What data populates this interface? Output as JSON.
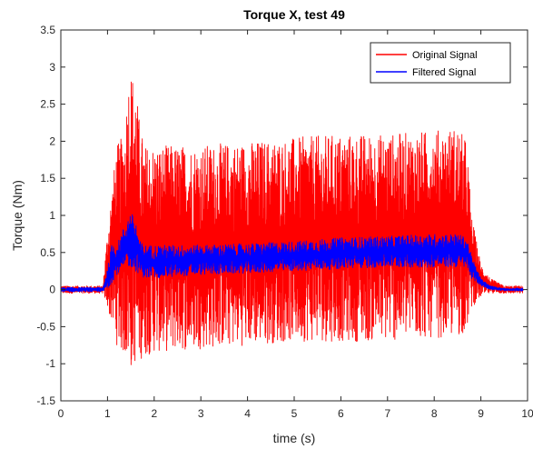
{
  "chart_data": {
    "type": "line",
    "title": "Torque X, test 49",
    "xlabel": "time (s)",
    "ylabel": "Torque (Nm)",
    "xlim": [
      0,
      10
    ],
    "ylim": [
      -1.5,
      3.5
    ],
    "xticks": [
      "0",
      "1",
      "2",
      "3",
      "4",
      "5",
      "6",
      "7",
      "8",
      "9",
      "10"
    ],
    "yticks": [
      "-1.5",
      "-1",
      "-0.5",
      "0",
      "0.5",
      "1",
      "1.5",
      "2",
      "2.5",
      "3",
      "3.5"
    ],
    "grid": false,
    "legend_position": "top-right",
    "series": [
      {
        "name": "Original Signal",
        "color": "#ff0000",
        "envelope": {
          "x": [
            0,
            0.9,
            1.0,
            1.1,
            1.2,
            1.35,
            1.45,
            1.5,
            1.6,
            1.7,
            1.8,
            2.0,
            3.0,
            4.0,
            5.0,
            6.0,
            7.0,
            8.0,
            8.5,
            8.7,
            8.8,
            9.0,
            9.2,
            9.5,
            9.9
          ],
          "upper": [
            0.05,
            0.05,
            0.8,
            1.4,
            1.95,
            2.1,
            2.9,
            3.0,
            2.8,
            2.2,
            1.95,
            1.95,
            1.95,
            2.0,
            2.05,
            2.1,
            2.1,
            2.15,
            2.2,
            2.0,
            1.0,
            0.35,
            0.15,
            0.05,
            0.05
          ],
          "lower": [
            -0.05,
            -0.05,
            -0.25,
            -0.5,
            -0.75,
            -0.9,
            -1.0,
            -1.1,
            -1.0,
            -0.95,
            -0.9,
            -0.85,
            -0.8,
            -0.75,
            -0.7,
            -0.7,
            -0.7,
            -0.65,
            -0.65,
            -0.55,
            -0.25,
            -0.1,
            -0.05,
            -0.05,
            -0.05
          ]
        }
      },
      {
        "name": "Filtered Signal",
        "color": "#0000ff",
        "envelope": {
          "x": [
            0,
            0.9,
            1.0,
            1.1,
            1.2,
            1.35,
            1.45,
            1.5,
            1.6,
            1.7,
            1.8,
            2.0,
            3.0,
            4.0,
            5.0,
            6.0,
            7.0,
            8.0,
            8.5,
            8.7,
            8.8,
            9.0,
            9.2,
            9.5,
            9.9
          ],
          "upper": [
            0.03,
            0.03,
            0.3,
            0.65,
            0.6,
            0.85,
            1.0,
            1.05,
            0.95,
            0.65,
            0.6,
            0.6,
            0.6,
            0.62,
            0.65,
            0.7,
            0.72,
            0.75,
            0.75,
            0.7,
            0.45,
            0.15,
            0.05,
            0.02,
            0.02
          ],
          "lower": [
            -0.03,
            -0.03,
            0.0,
            0.1,
            0.2,
            0.25,
            0.3,
            0.3,
            0.25,
            0.2,
            0.15,
            0.15,
            0.2,
            0.22,
            0.25,
            0.28,
            0.3,
            0.3,
            0.3,
            0.3,
            0.15,
            0.05,
            0.0,
            -0.02,
            -0.02
          ]
        }
      }
    ]
  }
}
